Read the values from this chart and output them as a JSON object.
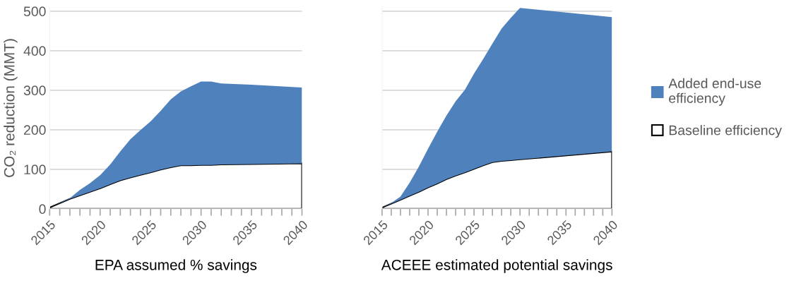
{
  "chart_data": [
    {
      "type": "area",
      "stacked": true,
      "xlabel": "EPA assumed % savings",
      "ylabel": "CO₂ reduction (MMT)",
      "x": [
        2015,
        2017,
        2018,
        2019,
        2020,
        2021,
        2022,
        2023,
        2024,
        2025,
        2026,
        2027,
        2028,
        2029,
        2030,
        2031,
        2032,
        2035,
        2040
      ],
      "series": [
        {
          "color": "#ffffff",
          "values": [
            3,
            25,
            34,
            43,
            52,
            62,
            72,
            79,
            86,
            92,
            99,
            105,
            110,
            110,
            111,
            111,
            112,
            113,
            115
          ]
        },
        {
          "color": "#4f81bd",
          "values": [
            0,
            2,
            14,
            22,
            33,
            50,
            73,
            97,
            113,
            129,
            149,
            172,
            187,
            200,
            211,
            211,
            205,
            201,
            192
          ]
        }
      ],
      "xlim": [
        2015,
        2040
      ],
      "xticks": [
        2015,
        {
          "value": 2016,
          "label": null
        },
        {
          "value": 2017,
          "label": null
        },
        {
          "value": 2018,
          "label": null
        },
        {
          "value": 2019,
          "label": null
        },
        2020,
        {
          "value": 2021,
          "label": null
        },
        {
          "value": 2022,
          "label": null
        },
        {
          "value": 2023,
          "label": null
        },
        {
          "value": 2024,
          "label": null
        },
        2025,
        {
          "value": 2026,
          "label": null
        },
        {
          "value": 2027,
          "label": null
        },
        {
          "value": 2028,
          "label": null
        },
        {
          "value": 2029,
          "label": null
        },
        2030,
        {
          "value": 2031,
          "label": null
        },
        {
          "value": 2032,
          "label": null
        },
        {
          "value": 2033,
          "label": null
        },
        {
          "value": 2034,
          "label": null
        },
        2035,
        {
          "value": 2036,
          "label": null
        },
        {
          "value": 2037,
          "label": null
        },
        {
          "value": 2038,
          "label": null
        },
        {
          "value": 2039,
          "label": null
        },
        2040
      ],
      "ylim": [
        0,
        510
      ],
      "yticks": [
        0,
        100,
        200,
        300,
        400,
        500
      ],
      "grid": "y"
    },
    {
      "type": "area",
      "stacked": true,
      "xlabel": "ACEEE estimated potential savings",
      "x": [
        2015,
        2016,
        2017,
        2018,
        2019,
        2020,
        2021,
        2022,
        2023,
        2024,
        2025,
        2026,
        2027,
        2028,
        2029,
        2030,
        2040
      ],
      "series": [
        {
          "name": "Baseline efficiency",
          "color": "#ffffff",
          "values": [
            3,
            13,
            23,
            33,
            43,
            54,
            64,
            75,
            84,
            92,
            101,
            110,
            118,
            121,
            123,
            125,
            145
          ]
        },
        {
          "name": "Added end-use\nefficiency",
          "color": "#4f81bd",
          "values": [
            0,
            2,
            8,
            33,
            64,
            98,
            131,
            161,
            188,
            209,
            241,
            269,
            300,
            335,
            360,
            383,
            340
          ]
        }
      ],
      "xlim": [
        2015,
        2040
      ],
      "xticks": [
        2015,
        {
          "value": 2016,
          "label": null
        },
        {
          "value": 2017,
          "label": null
        },
        {
          "value": 2018,
          "label": null
        },
        {
          "value": 2019,
          "label": null
        },
        2020,
        {
          "value": 2021,
          "label": null
        },
        {
          "value": 2022,
          "label": null
        },
        {
          "value": 2023,
          "label": null
        },
        {
          "value": 2024,
          "label": null
        },
        2025,
        {
          "value": 2026,
          "label": null
        },
        {
          "value": 2027,
          "label": null
        },
        {
          "value": 2028,
          "label": null
        },
        {
          "value": 2029,
          "label": null
        },
        2030,
        {
          "value": 2031,
          "label": null
        },
        {
          "value": 2032,
          "label": null
        },
        {
          "value": 2033,
          "label": null
        },
        {
          "value": 2034,
          "label": null
        },
        2035,
        {
          "value": 2036,
          "label": null
        },
        {
          "value": 2037,
          "label": null
        },
        {
          "value": 2038,
          "label": null
        },
        {
          "value": 2039,
          "label": null
        },
        2040
      ],
      "ylim": [
        0,
        510
      ],
      "yticks": [
        0,
        100,
        200,
        300,
        400,
        500
      ],
      "grid": "y",
      "tick_labels": "x",
      "legend": "right"
    }
  ]
}
